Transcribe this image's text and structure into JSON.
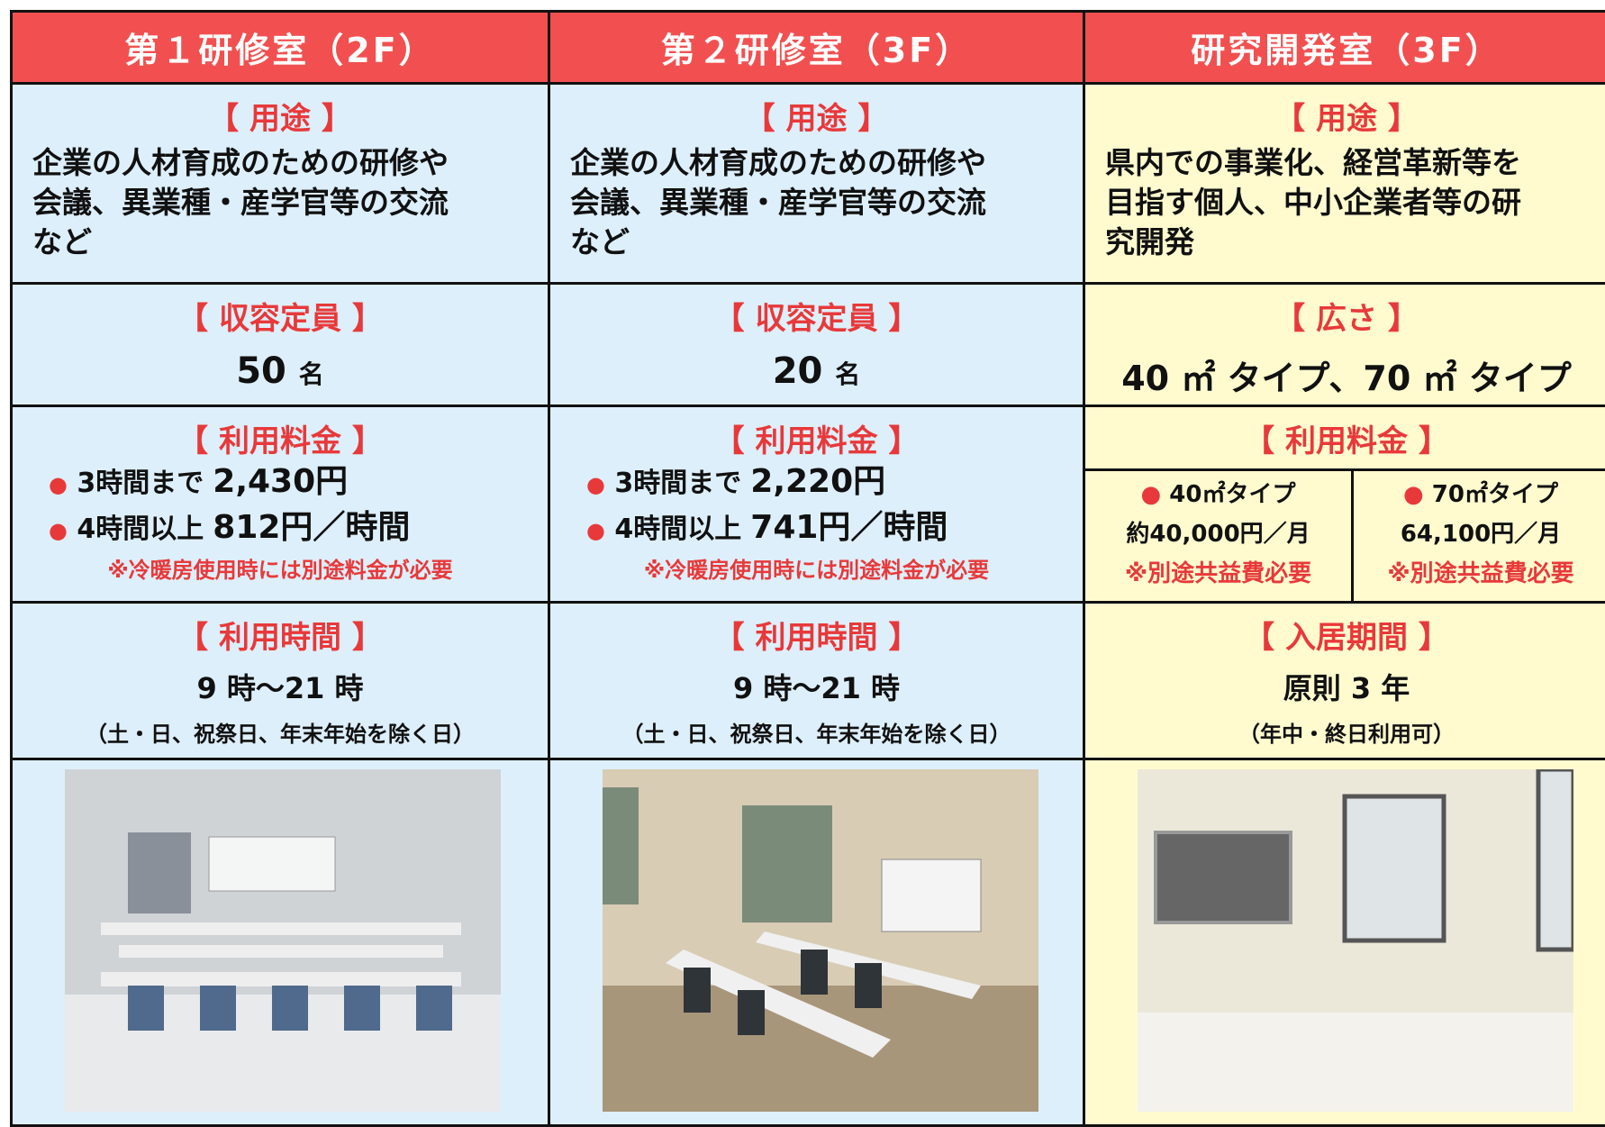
{
  "columns": [
    {
      "header": "第１研修室（2F）",
      "usage": {
        "label": "【 用途 】",
        "lines": [
          "企業の人材育成のための研修や",
          "会議、異業種・産学官等の交流",
          "など"
        ]
      },
      "capacity": {
        "label": "【 収容定員 】",
        "value": "50",
        "unit": "名"
      },
      "fee": {
        "label": "【 利用料金 】",
        "items": [
          {
            "bullet": "●",
            "term": "3時間まで",
            "amount": "2,430円"
          },
          {
            "bullet": "●",
            "term": "4時間以上",
            "amount": "812円／時間"
          }
        ],
        "note": "※冷暖房使用時には別途料金が必要"
      },
      "hours": {
        "label": "【 利用時間 】",
        "value": "9 時～21 時",
        "note": "（土・日、祝祭日、年末年始を除く日）"
      }
    },
    {
      "header": "第２研修室（3F）",
      "usage": {
        "label": "【 用途 】",
        "lines": [
          "企業の人材育成のための研修や",
          "会議、異業種・産学官等の交流",
          "など"
        ]
      },
      "capacity": {
        "label": "【 収容定員 】",
        "value": "20",
        "unit": "名"
      },
      "fee": {
        "label": "【 利用料金 】",
        "items": [
          {
            "bullet": "●",
            "term": "3時間まで",
            "amount": "2,220円"
          },
          {
            "bullet": "●",
            "term": "4時間以上",
            "amount": "741円／時間"
          }
        ],
        "note": "※冷暖房使用時には別途料金が必要"
      },
      "hours": {
        "label": "【 利用時間 】",
        "value": "9 時～21 時",
        "note": "（土・日、祝祭日、年末年始を除く日）"
      }
    },
    {
      "header": "研究開発室（3F）",
      "usage": {
        "label": "【 用途 】",
        "lines": [
          "県内での事業化、経営革新等を",
          "目指す個人、中小企業者等の研",
          "究開発"
        ]
      },
      "size": {
        "label": "【 広さ 】",
        "value": "40 ㎡ タイプ、70 ㎡ タイプ"
      },
      "fee": {
        "label": "【 利用料金 】",
        "types": [
          {
            "bullet": "●",
            "name": "40㎡タイプ",
            "amount": "約40,000円／月",
            "note": "※別途共益費必要"
          },
          {
            "bullet": "●",
            "name": "70㎡タイプ",
            "amount": "64,100円／月",
            "note": "※別途共益費必要"
          }
        ]
      },
      "period": {
        "label": "【 入居期間 】",
        "value": "原則 3 年",
        "note": "（年中・終日利用可）"
      }
    }
  ]
}
